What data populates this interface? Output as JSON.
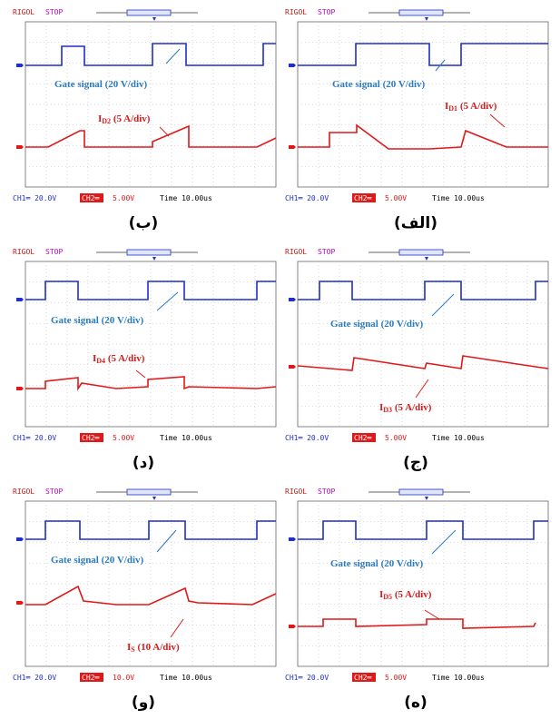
{
  "panels": [
    {
      "id": "b",
      "header": {
        "brand": "RIGOL",
        "state": "STOP"
      },
      "footer": {
        "ch1": "CH1═ 20.0V",
        "ch2": "CH2═",
        "ch2_value": "5.00V",
        "time": "Time 10.00us"
      },
      "gate_label": "Gate signal (20 V/div)",
      "current_label": {
        "main": "I",
        "sub": "D2",
        "rest": " (5 A/div)"
      },
      "caption": "(ب)"
    },
    {
      "id": "alef",
      "header": {
        "brand": "RIGOL",
        "state": "STOP"
      },
      "footer": {
        "ch1": "CH1═ 20.0V",
        "ch2": "CH2═",
        "ch2_value": "5.00V",
        "time": "Time 10.00us"
      },
      "gate_label": "Gate signal (20 V/div)",
      "current_label": {
        "main": "I",
        "sub": "D1",
        "rest": " (5 A/div)"
      },
      "caption": "(الف)"
    },
    {
      "id": "d",
      "header": {
        "brand": "RIGOL",
        "state": "STOP"
      },
      "footer": {
        "ch1": "CH1═ 20.0V",
        "ch2": "CH2═",
        "ch2_value": "5.00V",
        "time": "Time 10.00us"
      },
      "gate_label": "Gate signal (20 V/div)",
      "current_label": {
        "main": "I",
        "sub": "D4",
        "rest": " (5 A/div)"
      },
      "caption": "(د)"
    },
    {
      "id": "j",
      "header": {
        "brand": "RIGOL",
        "state": "STOP"
      },
      "footer": {
        "ch1": "CH1═ 20.0V",
        "ch2": "CH2═",
        "ch2_value": "5.00V",
        "time": "Time 10.00us"
      },
      "gate_label": "Gate signal (20 V/div)",
      "current_label": {
        "main": "I",
        "sub": "D3",
        "rest": " (5 A/div)"
      },
      "caption": "(ج)"
    },
    {
      "id": "v",
      "header": {
        "brand": "RIGOL",
        "state": "STOP"
      },
      "footer": {
        "ch1": "CH1═ 20.0V",
        "ch2": "CH2═",
        "ch2_value": "10.0V",
        "time": "Time 10.00us"
      },
      "gate_label": "Gate signal (20 V/div)",
      "current_label": {
        "main": "I",
        "sub": "S",
        "rest": " (10 A/div)"
      },
      "caption": "(و)"
    },
    {
      "id": "h",
      "header": {
        "brand": "RIGOL",
        "state": "STOP"
      },
      "footer": {
        "ch1": "CH1═ 20.0V",
        "ch2": "CH2═",
        "ch2_value": "5.00V",
        "time": "Time 10.00us"
      },
      "gate_label": "Gate signal (20 V/div)",
      "current_label": {
        "main": "I",
        "sub": "D5",
        "rest": " (5 A/div)"
      },
      "caption": "(ه)"
    }
  ],
  "colors": {
    "ch1": "#1f2fc8",
    "ch2": "#e01818",
    "annotation_blue": "#2a7bbf",
    "annotation_red": "#d81c1c",
    "brand": "#c81818",
    "state": "#c000c0"
  }
}
